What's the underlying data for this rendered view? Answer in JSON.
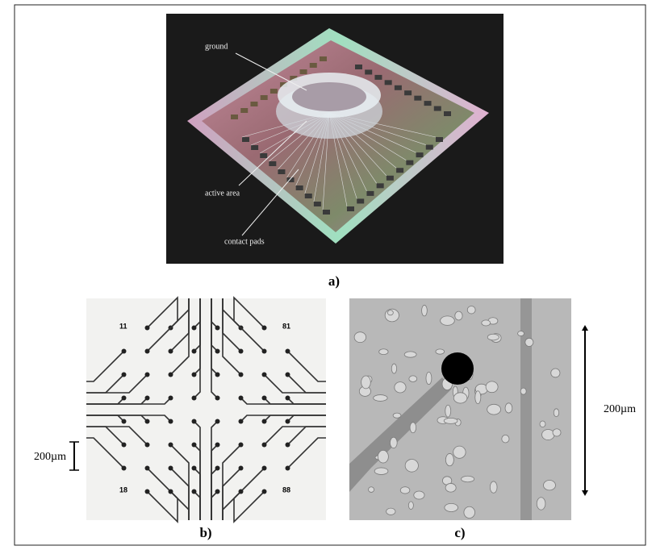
{
  "panel_a": {
    "labels": [
      "ground",
      "active area",
      "contact pads"
    ],
    "caption": "a)"
  },
  "panel_b": {
    "pad_labels": [
      "11",
      "81",
      "18",
      "88"
    ],
    "scale": "200µm",
    "caption": "b)"
  },
  "panel_c": {
    "scale": "200µm",
    "caption": "c)"
  }
}
